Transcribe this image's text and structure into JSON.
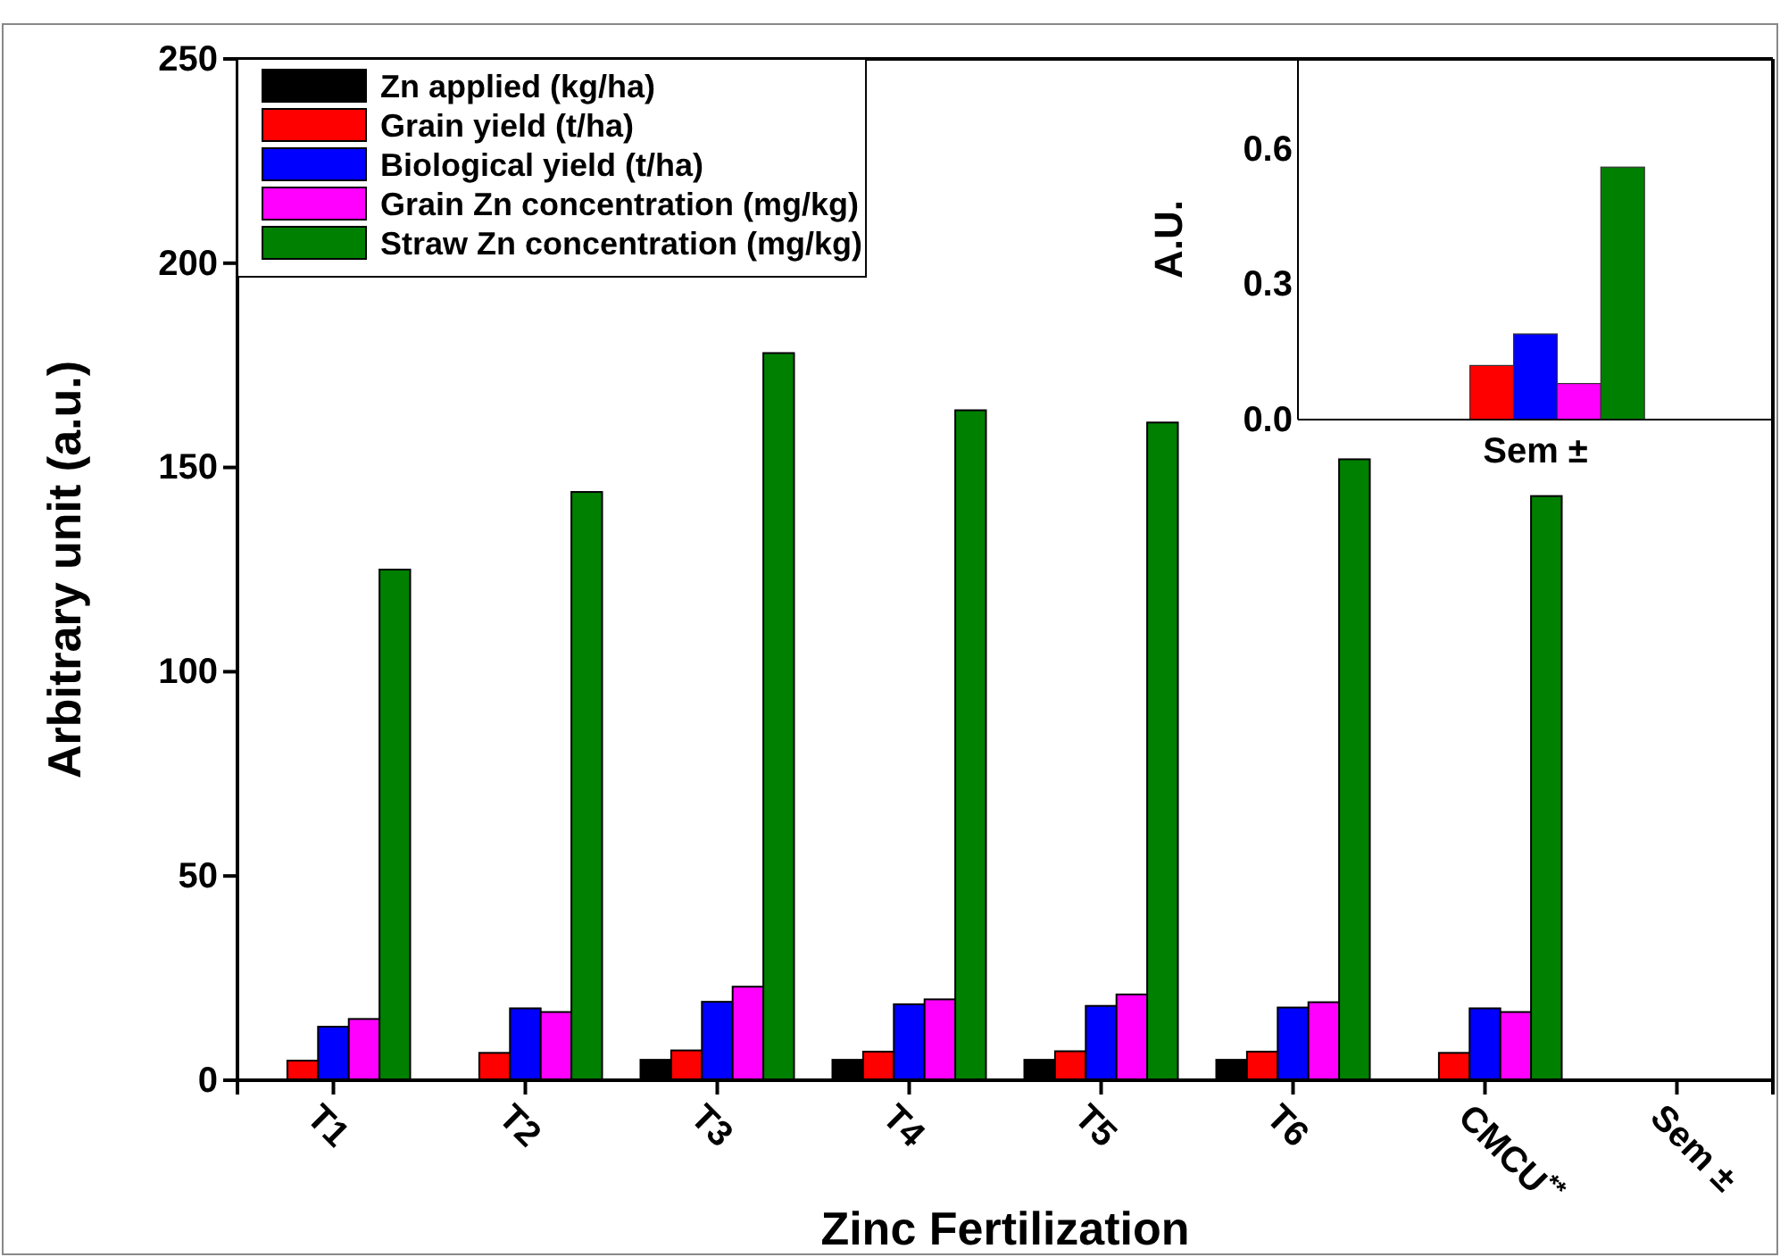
{
  "chart_data": [
    {
      "type": "bar",
      "xlabel": "Zinc Fertilization",
      "ylabel": "Arbitrary unit (a.u.)",
      "categories": [
        "T1",
        "T2",
        "T3",
        "T4",
        "T5",
        "T6",
        "CMCU$^{**}$",
        "Sem ±"
      ],
      "ylim": [
        0,
        250
      ],
      "yticks": [
        0,
        50,
        100,
        150,
        200,
        250
      ],
      "legend": "top left",
      "series": [
        {
          "name": "Zn applied (kg/ha)",
          "color": "#000000",
          "values": [
            0,
            0,
            5,
            5,
            5,
            5,
            0,
            null
          ]
        },
        {
          "name": "Grain yield (t/ha)",
          "color": "#ff0000",
          "values": [
            4.8,
            6.7,
            7.3,
            7.0,
            7.1,
            7.0,
            6.7,
            null
          ]
        },
        {
          "name": "Biological yield (t/ha)",
          "color": "#0000ff",
          "values": [
            13.1,
            17.6,
            19.2,
            18.6,
            18.2,
            17.8,
            17.6,
            null
          ]
        },
        {
          "name": "Grain Zn concentration (mg/kg)",
          "color": "#ff00ff",
          "values": [
            15,
            16.7,
            22.9,
            19.8,
            21.0,
            19.1,
            16.7,
            null
          ]
        },
        {
          "name": "Straw Zn concentration (mg/kg)",
          "color": "#008000",
          "values": [
            125,
            144,
            178,
            164,
            161,
            152,
            143,
            null
          ]
        }
      ]
    },
    {
      "type": "bar",
      "ylabel": "A.U.",
      "categories": [
        "Sem ±"
      ],
      "ylim": [
        0,
        0.8
      ],
      "yticks": [
        {
          "value": 0,
          "label": "0.0"
        },
        0.3,
        0.6
      ],
      "series": [
        {
          "color": "#000000",
          "values": [
            0
          ]
        },
        {
          "color": "#ff0000",
          "values": [
            0.12
          ]
        },
        {
          "color": "#0000ff",
          "values": [
            0.19
          ]
        },
        {
          "color": "#ff00ff",
          "values": [
            0.08
          ]
        },
        {
          "color": "#008000",
          "values": [
            0.56
          ]
        }
      ]
    }
  ]
}
